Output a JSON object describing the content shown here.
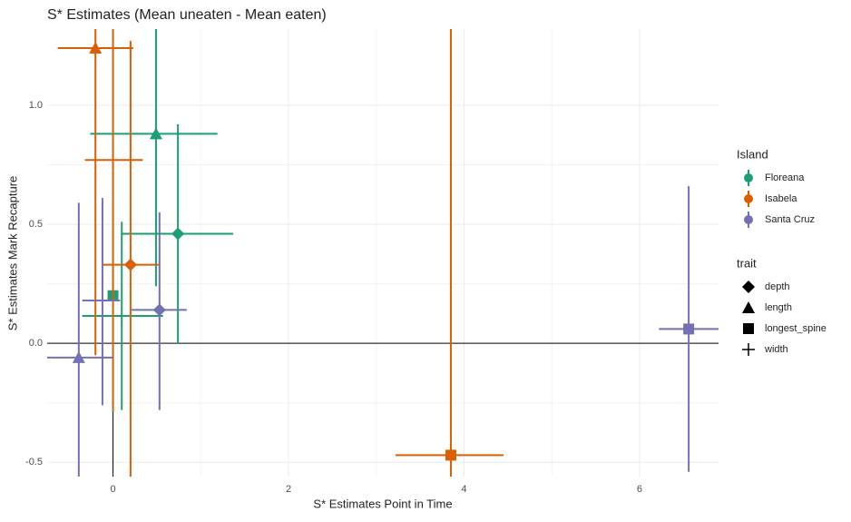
{
  "chart_data": {
    "type": "errorbar-scatter",
    "title": "S* Estimates (Mean uneaten - Mean eaten)",
    "x_label": "S* Estimates Point in Time",
    "y_label": "S* Estimates Mark Recapture",
    "xlim": [
      -0.75,
      6.9
    ],
    "ylim": [
      -0.56,
      1.32
    ],
    "xticks": [
      0,
      2,
      4,
      6
    ],
    "yticks": [
      -0.5,
      0.0,
      0.5,
      1.0
    ],
    "yticks_labels": [
      "-0.5",
      "0.0",
      "0.5",
      "1.0"
    ],
    "grid": true,
    "minor_grid": true,
    "legend_title": "Island",
    "shape_legend_title": "trait",
    "traits": [
      "depth",
      "length",
      "longest_spine",
      "width"
    ],
    "series": [
      {
        "name": "Floreana",
        "color": "#1b9e77",
        "trait": [
          "length",
          "depth",
          "longest_spine",
          "width"
        ],
        "x": [
          0.49,
          0.74,
          0.0,
          0.1
        ],
        "values": [
          0.88,
          0.46,
          0.2,
          0.115
        ],
        "xmin": [
          -0.26,
          0.1,
          -0.03,
          -0.35
        ],
        "xmax": [
          1.19,
          1.37,
          0.04,
          0.57
        ],
        "ymin": [
          0.24,
          0.0,
          0.18,
          -0.28
        ],
        "ymax": [
          1.5,
          0.92,
          0.22,
          0.51
        ]
      },
      {
        "name": "Isabela",
        "color": "#d95f02",
        "trait": [
          "length",
          "depth",
          "width",
          "longest_spine"
        ],
        "x": [
          -0.2,
          0.2,
          0.0,
          3.85
        ],
        "values": [
          1.24,
          0.33,
          0.77,
          -0.47
        ],
        "xmin": [
          -0.63,
          -0.13,
          -0.32,
          3.22
        ],
        "xmax": [
          0.23,
          0.53,
          0.34,
          4.45
        ],
        "ymin": [
          -0.05,
          -0.6,
          -0.29,
          -0.6
        ],
        "ymax": [
          1.5,
          1.27,
          1.5,
          1.5
        ]
      },
      {
        "name": "Santa Cruz",
        "color": "#7570b3",
        "trait": [
          "length",
          "depth",
          "width",
          "longest_spine"
        ],
        "x": [
          -0.39,
          0.53,
          -0.12,
          6.56
        ],
        "values": [
          -0.06,
          0.14,
          0.18,
          0.06
        ],
        "xmin": [
          -0.8,
          0.21,
          -0.35,
          6.22
        ],
        "xmax": [
          0.0,
          0.84,
          0.08,
          7.1
        ],
        "ymin": [
          -0.6,
          -0.28,
          -0.26,
          -0.54
        ],
        "ymax": [
          0.59,
          0.55,
          0.61,
          0.66
        ]
      }
    ]
  }
}
